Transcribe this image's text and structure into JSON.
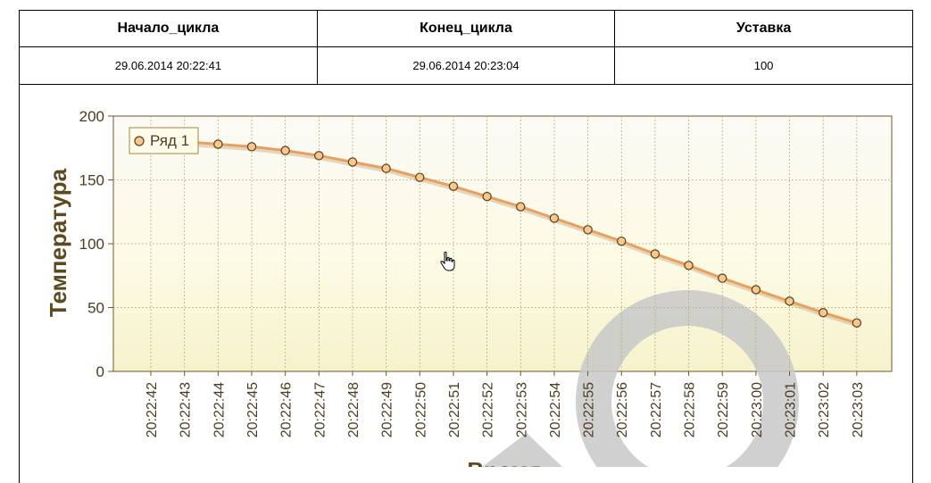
{
  "table": {
    "headers": [
      "Начало_цикла",
      "Конец_цикла",
      "Уставка"
    ],
    "row": [
      "29.06.2014 20:22:41",
      "29.06.2014 20:23:04",
      "100"
    ]
  },
  "chart_data": {
    "type": "line",
    "ylabel": "Температура",
    "xlabel": "Время",
    "ylim": [
      0,
      200
    ],
    "yticks": [
      0,
      50,
      100,
      150,
      200
    ],
    "categories": [
      "20:22:42",
      "20:22:43",
      "20:22:44",
      "20:22:45",
      "20:22:46",
      "20:22:47",
      "20:22:48",
      "20:22:49",
      "20:22:50",
      "20:22:51",
      "20:22:52",
      "20:22:53",
      "20:22:54",
      "20:22:55",
      "20:22:56",
      "20:22:57",
      "20:22:58",
      "20:22:59",
      "20:23:00",
      "20:23:01",
      "20:23:02",
      "20:23:03"
    ],
    "series": [
      {
        "name": "Ряд 1",
        "x": [
          "20:22:42",
          "20:22:43",
          "20:22:44",
          "20:22:45",
          "20:22:46",
          "20:22:47",
          "20:22:48",
          "20:22:49",
          "20:22:50",
          "20:22:51",
          "20:22:52",
          "20:22:53",
          "20:22:54",
          "20:22:55",
          "20:22:56",
          "20:22:57",
          "20:22:58",
          "20:22:59",
          "20:23:00",
          "20:23:01",
          "20:23:02",
          "20:23:03"
        ],
        "values": [
          181,
          180,
          178,
          176,
          173,
          169,
          164,
          159,
          152,
          145,
          137,
          129,
          120,
          111,
          102,
          92,
          83,
          73,
          64,
          55,
          46,
          38
        ]
      }
    ],
    "grid": true,
    "legend": "top-left",
    "colors": {
      "line": "#e8a060",
      "marker_fill": "#f6c88e",
      "marker_stroke": "#5a3e1b",
      "axis_text": "#4a3c22",
      "title_text": "#5a4a20",
      "watermark": "#cccccc"
    }
  }
}
